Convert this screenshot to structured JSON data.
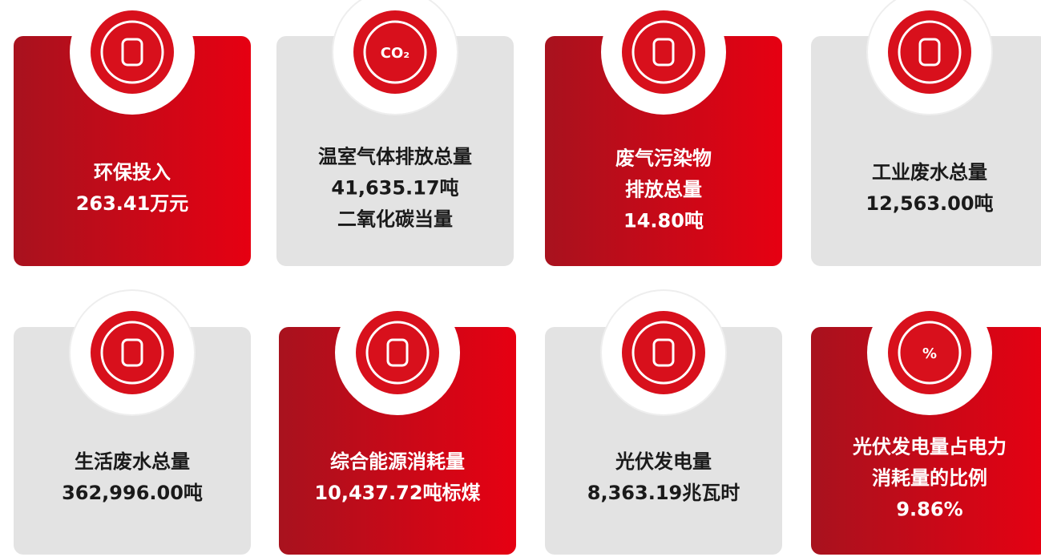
{
  "cards": [
    {
      "lines": [
        "环保投入",
        "263.41万元"
      ],
      "colors": [
        "#a8121e",
        "#e60012"
      ]
    },
    {
      "lines": [
        "温室气体排放总量",
        "41,635.17吨",
        "二氧化碳当量"
      ],
      "colors": [
        "#e3e3e3",
        "#e3e3e3"
      ],
      "icon_label": "CO₂"
    },
    {
      "lines": [
        "废气污染物",
        "排放总量",
        "14.80吨"
      ],
      "colors": [
        "#a8121e",
        "#e60012"
      ]
    },
    {
      "lines": [
        "工业废水总量",
        "12,563.00吨"
      ],
      "colors": [
        "#e3e3e3",
        "#e3e3e3"
      ]
    },
    {
      "lines": [
        "生活废水总量",
        "362,996.00吨"
      ],
      "colors": [
        "#e3e3e3",
        "#e3e3e3"
      ]
    },
    {
      "lines": [
        "综合能源消耗量",
        "10,437.72吨标煤"
      ],
      "colors": [
        "#a8121e",
        "#e60012"
      ]
    },
    {
      "lines": [
        "光伏发电量",
        "8,363.19兆瓦时"
      ],
      "colors": [
        "#e3e3e3",
        "#e3e3e3"
      ]
    },
    {
      "lines": [
        "光伏发电量占电力",
        "消耗量的比例",
        "9.86%"
      ],
      "colors": [
        "#a8121e",
        "#e60012"
      ],
      "icon_label": "%"
    }
  ]
}
